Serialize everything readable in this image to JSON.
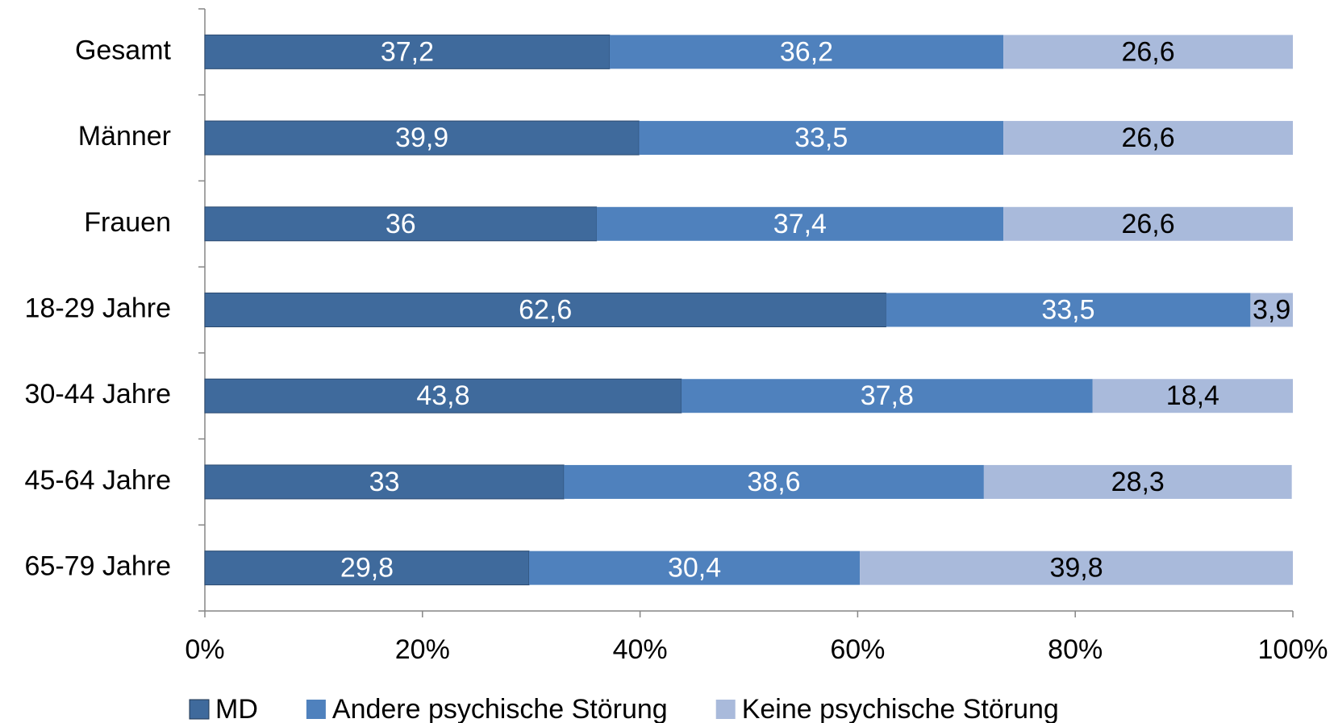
{
  "chart_data": {
    "type": "stacked-barh",
    "categories": [
      "Gesamt",
      "Männer",
      "Frauen",
      "18-29 Jahre",
      "30-44 Jahre",
      "45-64 Jahre",
      "65-79 Jahre"
    ],
    "series": [
      {
        "name": "MD",
        "color": "#3f6a9c",
        "label_color": "#ffffff",
        "values": [
          37.2,
          39.9,
          36,
          62.6,
          43.8,
          33,
          29.8
        ],
        "value_labels": [
          "37,2",
          "39,9",
          "36",
          "62,6",
          "43,8",
          "33",
          "29,8"
        ]
      },
      {
        "name": "Andere psychische Störung",
        "color": "#4f81bd",
        "label_color": "#ffffff",
        "values": [
          36.2,
          33.5,
          37.4,
          33.5,
          37.8,
          38.6,
          30.4
        ],
        "value_labels": [
          "36,2",
          "33,5",
          "37,4",
          "33,5",
          "37,8",
          "38,6",
          "30,4"
        ]
      },
      {
        "name": "Keine psychische Störung",
        "color": "#a9badb",
        "label_color": "#000000",
        "values": [
          26.6,
          26.6,
          26.6,
          3.9,
          18.4,
          28.3,
          39.8
        ],
        "value_labels": [
          "26,6",
          "26,6",
          "26,6",
          "3,9",
          "18,4",
          "28,3",
          "39,8"
        ]
      }
    ],
    "xlim": [
      0,
      100
    ],
    "xticks": [
      {
        "value": 0,
        "label": "0%"
      },
      {
        "value": 20,
        "label": "20%"
      },
      {
        "value": 40,
        "label": "40%"
      },
      {
        "value": 60,
        "label": "60%"
      },
      {
        "value": 80,
        "label": "80%"
      },
      {
        "value": 100,
        "label": "100%"
      }
    ],
    "legend": "bottom"
  }
}
